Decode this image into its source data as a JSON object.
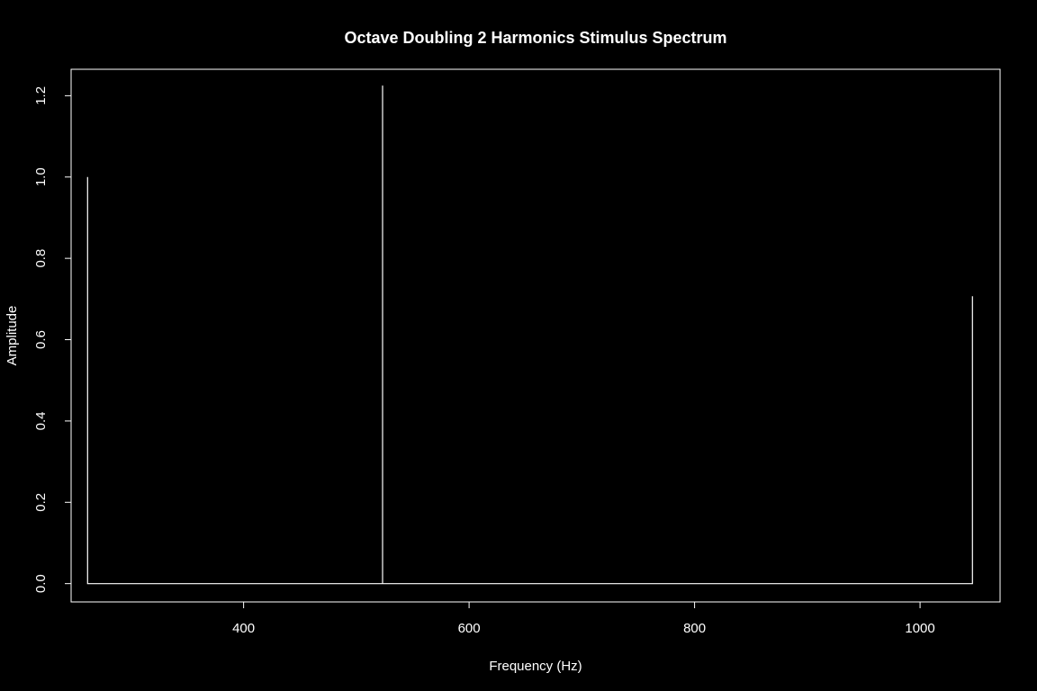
{
  "chart_data": {
    "type": "line",
    "title": "Octave Doubling 2 Harmonics Stimulus Spectrum",
    "xlabel": "Frequency (Hz)",
    "ylabel": "Amplitude",
    "xlim": [
      247,
      1071
    ],
    "ylim": [
      -0.045,
      1.265
    ],
    "x_ticks": [
      400,
      600,
      800,
      1000
    ],
    "y_ticks": [
      0.0,
      0.2,
      0.4,
      0.6,
      0.8,
      1.0,
      1.2
    ],
    "x_tick_labels": [
      "400",
      "600",
      "800",
      "1000"
    ],
    "y_tick_labels": [
      "0.0",
      "0.2",
      "0.4",
      "0.6",
      "0.8",
      "1.0",
      "1.2"
    ],
    "grid": false,
    "series": [
      {
        "points": [
          {
            "x": 261.6,
            "y": 0
          },
          {
            "x": 261.6,
            "y": 1.0
          },
          {
            "x": 261.6,
            "y": 0
          },
          {
            "x": 523.3,
            "y": 0
          },
          {
            "x": 523.3,
            "y": 1.225
          },
          {
            "x": 523.3,
            "y": 0
          },
          {
            "x": 1046.5,
            "y": 0
          },
          {
            "x": 1046.5,
            "y": 0.707
          }
        ]
      }
    ],
    "colors": {
      "background": "#000000",
      "foreground": "#ffffff"
    }
  }
}
